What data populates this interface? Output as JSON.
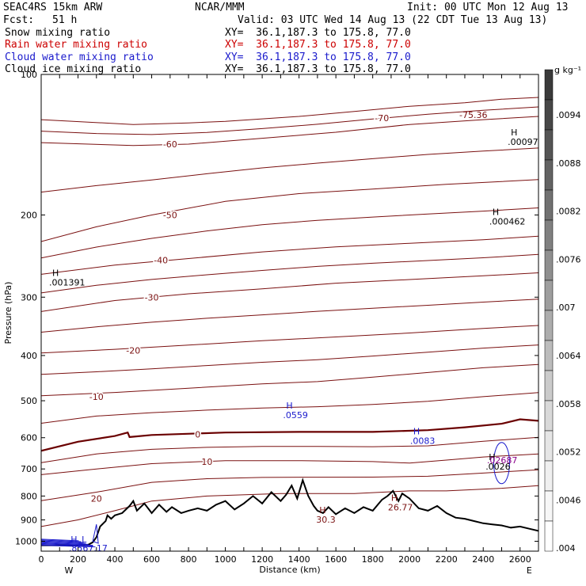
{
  "header": {
    "model": "SEAC4RS 15km ARW",
    "center": "NCAR/MMM",
    "init": "Init: 00 UTC Mon 12 Aug 13",
    "fcst_label": "Fcst:",
    "fcst_value": "51 h",
    "valid": "Valid: 03 UTC Wed 14 Aug 13 (22 CDT Tue 13 Aug 13)"
  },
  "fields": [
    {
      "name": "Snow mixing ratio",
      "xy": "XY=  36.1,187.3 to 175.8, 77.0",
      "color": "#000000"
    },
    {
      "name": "Rain water mixing ratio",
      "xy": "XY=  36.1,187.3 to 175.8, 77.0",
      "color": "#cc0000"
    },
    {
      "name": "Cloud water mixing ratio",
      "xy": "XY=  36.1,187.3 to 175.8, 77.0",
      "color": "#1a1acc"
    },
    {
      "name": "Cloud ice mixing ratio",
      "xy": "XY=  36.1,187.3 to 175.8, 77.0",
      "color": "#000000"
    }
  ],
  "colors": {
    "temperature_contour": "#7a1010",
    "zero_contour": "#6a0000",
    "terrain": "#000000",
    "cloud_water": "#1a1acc",
    "ice_label": "#8a008a"
  },
  "chart_data": {
    "type": "cross-section",
    "xlabel": "Distance (km)",
    "ylabel": "Pressure (hPa)",
    "xlim": [
      0,
      2700
    ],
    "ylim": [
      1050,
      100
    ],
    "y_log": true,
    "x_ticks": [
      "0",
      "100",
      "200",
      "300",
      "400",
      "500",
      "600",
      "700",
      "800",
      "900",
      "1000",
      "1100",
      "1200",
      "1300",
      "1400",
      "1500",
      "1600",
      "1700",
      "1800",
      "1900",
      "2000",
      "2100",
      "2200",
      "2300",
      "2400",
      "2500",
      "2600"
    ],
    "x_tick_labels": [
      "0",
      "200",
      "400",
      "600",
      "800",
      "1000",
      "1200",
      "1400",
      "1600",
      "1800",
      "2000",
      "2200",
      "2400",
      "2600"
    ],
    "y_ticks": [
      "100",
      "200",
      "300",
      "400",
      "500",
      "600",
      "700",
      "800",
      "900",
      "1000"
    ],
    "x_end_labels": {
      "left": "W",
      "right": "E"
    },
    "colorbar": {
      "unit": "g kg⁻¹",
      "labels": [
        ".0094",
        ".0088",
        ".0082",
        ".0076",
        ".007",
        ".0064",
        ".0058",
        ".0052",
        ".0046",
        ".004"
      ],
      "shades": [
        "#3a3a3a",
        "#474747",
        "#555555",
        "#636363",
        "#717171",
        "#808080",
        "#8f8f8f",
        "#9e9e9e",
        "#adadad",
        "#bcbcbc",
        "#cbcbcb",
        "#d9d9d9",
        "#e6e6e6",
        "#f0f0f0",
        "#f7f7f7",
        "#ffffff"
      ]
    },
    "terrain": {
      "x": [
        0,
        250,
        280,
        300,
        320,
        350,
        360,
        380,
        400,
        440,
        480,
        500,
        520,
        560,
        600,
        640,
        680,
        710,
        760,
        800,
        850,
        900,
        950,
        1000,
        1050,
        1100,
        1150,
        1200,
        1250,
        1300,
        1330,
        1360,
        1390,
        1420,
        1450,
        1480,
        1500,
        1530,
        1560,
        1600,
        1650,
        1700,
        1750,
        1800,
        1850,
        1880,
        1910,
        1940,
        1960,
        2000,
        2050,
        2100,
        2150,
        2200,
        2250,
        2300,
        2350,
        2400,
        2450,
        2500,
        2550,
        2600,
        2650,
        2700
      ],
      "p": [
        1020,
        1020,
        1005,
        980,
        930,
        905,
        880,
        895,
        880,
        870,
        840,
        820,
        860,
        830,
        870,
        835,
        865,
        845,
        870,
        860,
        850,
        860,
        835,
        820,
        855,
        830,
        800,
        830,
        785,
        820,
        795,
        760,
        810,
        740,
        800,
        840,
        860,
        870,
        845,
        875,
        850,
        870,
        845,
        860,
        815,
        800,
        780,
        820,
        790,
        810,
        850,
        860,
        840,
        870,
        890,
        895,
        905,
        915,
        920,
        925,
        935,
        930,
        940,
        950
      ]
    },
    "cloud_water_patch": {
      "x0": 0,
      "x1": 290,
      "p0": 990,
      "p1": 1020
    },
    "isotherms": [
      {
        "label": "-70",
        "x": [
          0,
          500,
          800,
          1000,
          1400,
          1700,
          2000,
          2300,
          2500,
          2700
        ],
        "p": [
          125,
          128,
          127,
          126,
          123,
          120,
          117,
          115,
          113,
          112
        ]
      },
      {
        "label": "-60",
        "x": [
          0,
          500,
          800,
          1200,
          1600,
          2000,
          2400,
          2700
        ],
        "p": [
          140,
          142,
          141,
          137,
          133,
          128,
          125,
          123
        ]
      },
      {
        "label": "-50",
        "x": [
          0,
          300,
          600,
          1000,
          1400,
          1800,
          2200,
          2700
        ],
        "p": [
          228,
          212,
          200,
          187,
          180,
          176,
          172,
          168
        ]
      },
      {
        "label": "-40",
        "x": [
          0,
          400,
          800,
          1200,
          1600,
          2000,
          2400,
          2700
        ],
        "p": [
          268,
          256,
          248,
          240,
          234,
          230,
          226,
          222
        ]
      },
      {
        "label": "-30",
        "x": [
          0,
          400,
          800,
          1200,
          1600,
          2000,
          2400,
          2700
        ],
        "p": [
          322,
          305,
          295,
          288,
          280,
          275,
          270,
          266
        ]
      },
      {
        "label": "-20",
        "x": [
          0,
          400,
          800,
          1200,
          1600,
          2000,
          2400,
          2700
        ],
        "p": [
          395,
          388,
          380,
          372,
          365,
          358,
          350,
          345
        ]
      },
      {
        "label": "-10",
        "x": [
          0,
          400,
          800,
          1200,
          1500,
          1800,
          2100,
          2400,
          2700
        ],
        "p": [
          488,
          480,
          470,
          460,
          455,
          445,
          435,
          425,
          418
        ]
      },
      {
        "label": "0",
        "x": [
          0,
          200,
          400,
          470,
          480,
          600,
          1000,
          1400,
          1800,
          2100,
          2300,
          2500,
          2600,
          2700
        ],
        "p": [
          640,
          612,
          595,
          585,
          598,
          592,
          585,
          583,
          583,
          578,
          570,
          560,
          548,
          552
        ]
      },
      {
        "label": "10",
        "x": [
          0,
          300,
          600,
          1000,
          1400,
          1800,
          2000,
          2200,
          2400,
          2700
        ],
        "p": [
          720,
          700,
          682,
          672,
          672,
          675,
          680,
          670,
          660,
          650
        ]
      },
      {
        "label": "20",
        "x": [
          0,
          200,
          400,
          600,
          900,
          1300,
          1700,
          2000,
          2200,
          2500,
          2700
        ],
        "p": [
          930,
          900,
          860,
          820,
          800,
          790,
          790,
          780,
          780,
          770,
          760
        ]
      }
    ],
    "extrema": [
      {
        "kind": "H",
        "value": ".001391",
        "x": 60,
        "p": 270
      },
      {
        "kind": "H",
        "value": ".00097",
        "x": 2550,
        "p": 135
      },
      {
        "kind": "H",
        "value": ".000462",
        "x": 2450,
        "p": 200
      },
      {
        "kind": "H",
        "value": ".0559",
        "x": 1330,
        "p": 520
      },
      {
        "kind": "H",
        "value": ".0083",
        "x": 2020,
        "p": 590
      },
      {
        "kind": "H",
        "value": ".0026",
        "x": 2430,
        "p": 670
      },
      {
        "kind": "H",
        "value": "30.3",
        "x": 1510,
        "p": 870
      },
      {
        "kind": "H",
        "value": "26.77",
        "x": 1900,
        "p": 820
      }
    ],
    "min_label": "-75.36",
    "surface_labels": {
      "h": "H",
      "l": "L",
      "values": ".8567.17"
    },
    "overlap_label": ".02687"
  }
}
